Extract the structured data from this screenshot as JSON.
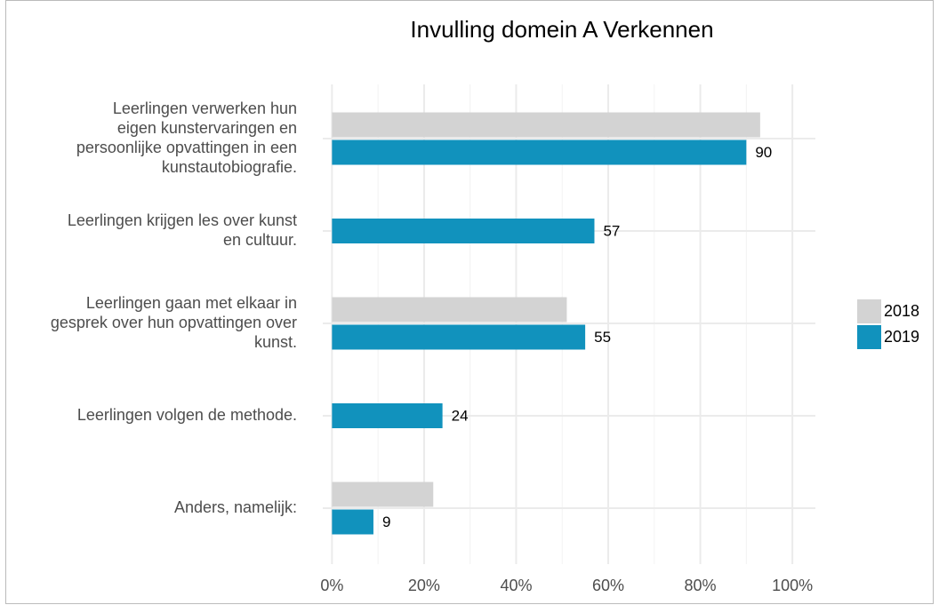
{
  "chart_data": {
    "type": "bar",
    "orientation": "horizontal",
    "title": "Invulling domein A Verkennen",
    "categories": [
      [
        "Leerlingen verwerken hun",
        "eigen kunstervaringen en",
        "persoonlijke opvattingen in een",
        "kunstautobiografie."
      ],
      [
        "Leerlingen krijgen les over kunst",
        "en cultuur."
      ],
      [
        "Leerlingen gaan met elkaar in",
        "gesprek over hun opvattingen over",
        "kunst."
      ],
      [
        "Leerlingen volgen de methode."
      ],
      [
        "Anders, namelijk:"
      ]
    ],
    "series": [
      {
        "name": "2018",
        "color": "#d3d3d3",
        "values": [
          93,
          null,
          51,
          null,
          22
        ],
        "data_labels": false
      },
      {
        "name": "2019",
        "color": "#1192bd",
        "values": [
          90,
          57,
          55,
          24,
          9
        ],
        "data_labels": true
      }
    ],
    "xlim": [
      -2,
      105
    ],
    "xticks": [
      {
        "value": 0,
        "label": "0%"
      },
      {
        "value": 20,
        "label": "20%"
      },
      {
        "value": 40,
        "label": "40%"
      },
      {
        "value": 60,
        "label": "60%"
      },
      {
        "value": 80,
        "label": "80%"
      },
      {
        "value": 100,
        "label": "100%"
      }
    ],
    "xminor": [
      10,
      30,
      50,
      70,
      90
    ],
    "grid": true,
    "legend": "right"
  }
}
